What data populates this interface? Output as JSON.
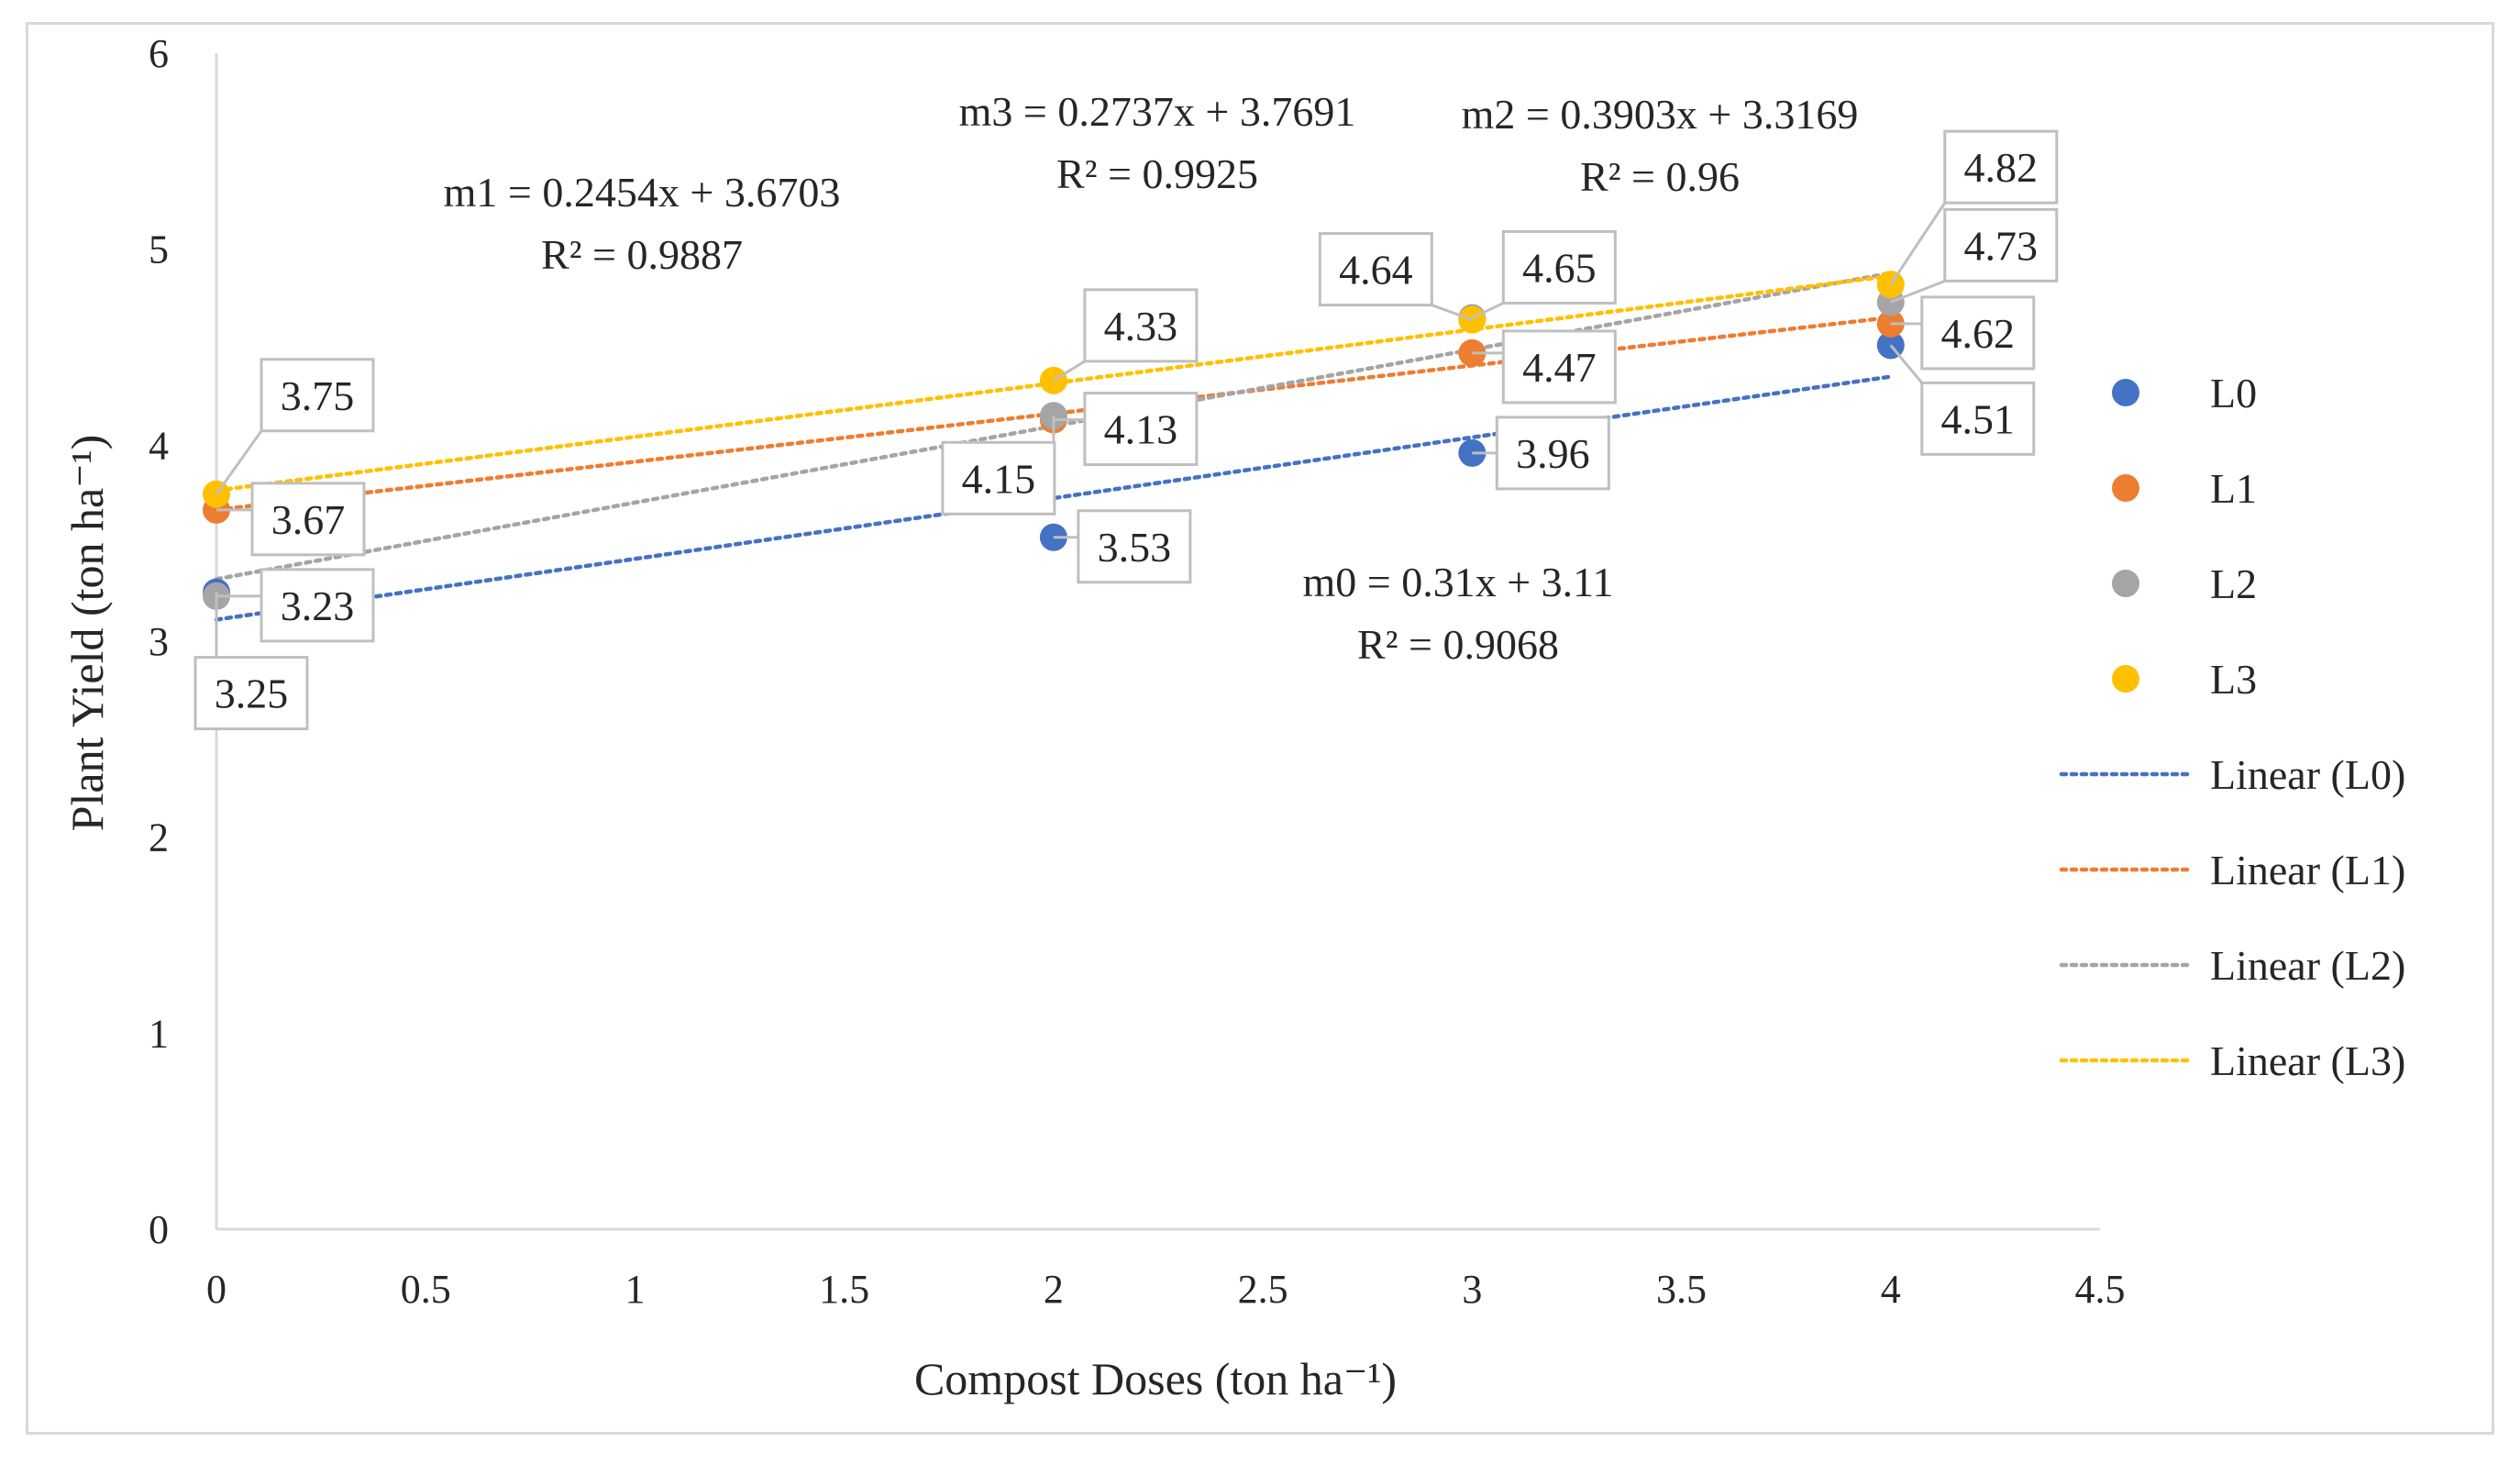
{
  "chart_data": {
    "type": "scatter",
    "title": "",
    "xlabel": "Compost Doses (ton ha⁻¹)",
    "ylabel": "Plant Yield (ton ha⁻¹)",
    "xlim": [
      0,
      4.5
    ],
    "ylim": [
      0,
      6
    ],
    "x_ticks": [
      "0",
      "0.5",
      "1",
      "1.5",
      "2",
      "2.5",
      "3",
      "3.5",
      "4",
      "4.5"
    ],
    "y_ticks": [
      "0",
      "1",
      "2",
      "3",
      "4",
      "5",
      "6"
    ],
    "x": [
      0,
      2,
      3,
      4
    ],
    "series": [
      {
        "name": "L0",
        "color": "#4472C4",
        "values": [
          3.25,
          3.53,
          3.96,
          4.51
        ],
        "labels": [
          "3.25",
          "3.53",
          "3.96",
          "4.51"
        ],
        "trend": {
          "slope": 0.31,
          "intercept": 3.11,
          "legend": "Linear (L0)",
          "equation": "m0 = 0.31x + 3.11",
          "r2": "R² = 0.9068"
        }
      },
      {
        "name": "L1",
        "color": "#ED7D31",
        "values": [
          3.67,
          4.13,
          4.47,
          4.62
        ],
        "labels": [
          "3.67",
          "4.13",
          "4.47",
          "4.62"
        ],
        "trend": {
          "slope": 0.2454,
          "intercept": 3.6703,
          "legend": "Linear (L1)",
          "equation": "m1 = 0.2454x + 3.6703",
          "r2": "R² = 0.9887"
        }
      },
      {
        "name": "L2",
        "color": "#A5A5A5",
        "values": [
          3.23,
          4.15,
          4.65,
          4.73
        ],
        "labels": [
          "3.23",
          "4.15",
          "4.65",
          "4.73"
        ],
        "trend": {
          "slope": 0.3903,
          "intercept": 3.3169,
          "legend": "Linear (L2)",
          "equation": "m2 = 0.3903x + 3.3169",
          "r2": "R² = 0.96"
        }
      },
      {
        "name": "L3",
        "color": "#FFC000",
        "values": [
          3.75,
          4.33,
          4.64,
          4.82
        ],
        "labels": [
          "3.75",
          "4.33",
          "4.64",
          "4.82"
        ],
        "trend": {
          "slope": 0.2737,
          "intercept": 3.7691,
          "legend": "Linear (L3)",
          "equation": "m3 = 0.2737x + 3.7691",
          "r2": "R² = 0.9925"
        }
      }
    ],
    "legend_position": "right"
  }
}
